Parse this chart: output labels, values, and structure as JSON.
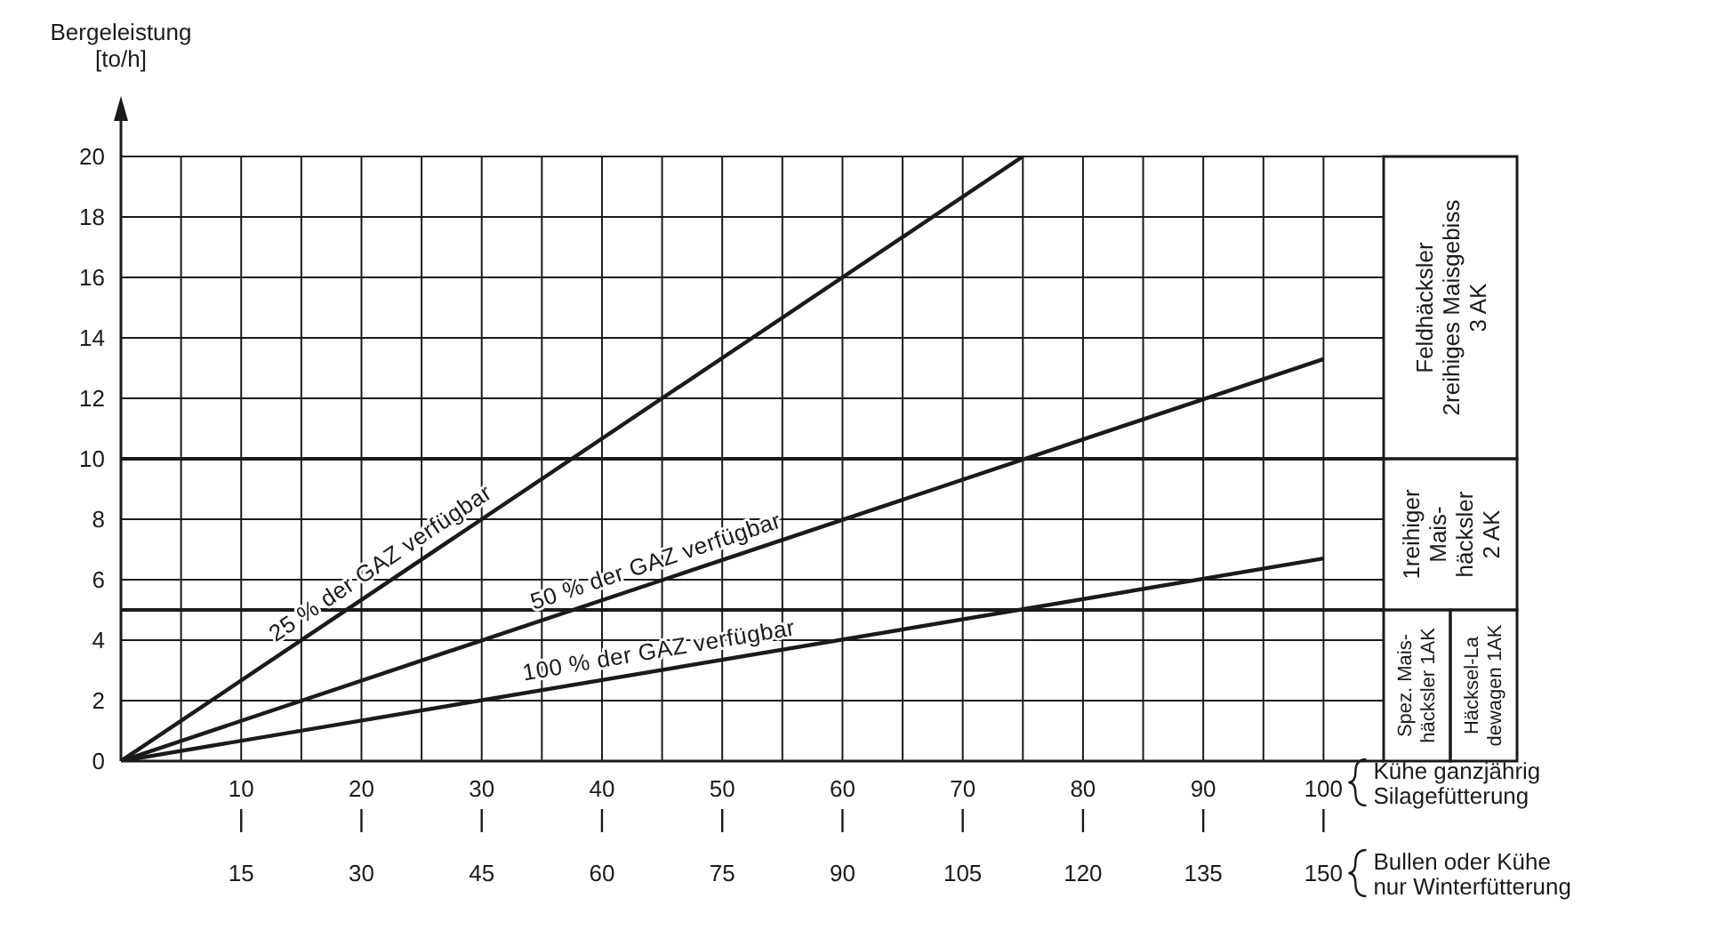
{
  "chart_data": {
    "type": "line",
    "ylabel": "Bergeleistung\n[to/h]",
    "xlabel": "Kühe ganzjährig\nSilagefütterung",
    "x2label": "Bullen oder Kühe\nnur Winterfütterung",
    "series": [
      {
        "name": "25 % der GAZ verfügbar",
        "color": "#1a1a1a",
        "x": [
          0,
          75
        ],
        "values": [
          0,
          20
        ]
      },
      {
        "name": "50 % der GAZ verfügbar",
        "color": "#1a1a1a",
        "x": [
          0,
          100
        ],
        "values": [
          0,
          13.3
        ]
      },
      {
        "name": "100 % der GAZ verfügbar",
        "color": "#1a1a1a",
        "x": [
          0,
          100
        ],
        "values": [
          0,
          6.7
        ]
      }
    ],
    "xlim": [
      0,
      105
    ],
    "xticks": [
      {
        "value": 5,
        "label": null
      },
      10,
      {
        "value": 15,
        "label": null
      },
      20,
      {
        "value": 25,
        "label": null
      },
      30,
      {
        "value": 35,
        "label": null
      },
      40,
      {
        "value": 45,
        "label": null
      },
      50,
      {
        "value": 55,
        "label": null
      },
      60,
      {
        "value": 65,
        "label": null
      },
      70,
      {
        "value": 75,
        "label": null
      },
      80,
      {
        "value": 85,
        "label": null
      },
      90,
      {
        "value": 95,
        "label": null
      },
      100
    ],
    "x2lim": [
      0,
      157.5
    ],
    "x2ticks": [
      15,
      30,
      45,
      60,
      75,
      90,
      105,
      120,
      135,
      150
    ],
    "ylim": [
      0,
      20
    ],
    "yticks": [
      0,
      2,
      4,
      6,
      8,
      10,
      12,
      14,
      16,
      18,
      20
    ],
    "grid": true,
    "marker": "none",
    "line_style": "solid",
    "ref_lines": [
      {
        "axis": "y",
        "value": 5,
        "color": "#1a1a1a"
      },
      {
        "axis": "y",
        "value": 10,
        "color": "#1a1a1a"
      }
    ],
    "annotations": [
      "Feldhäcksler\n2reihiges Maisgebiss\n3 AK",
      "1reihiger\nMais-\nhäcksler\n2 AK",
      "Spez. Mais-\nhäcksler 1AK",
      "Häcksel-La\ndewagen 1AK"
    ]
  }
}
